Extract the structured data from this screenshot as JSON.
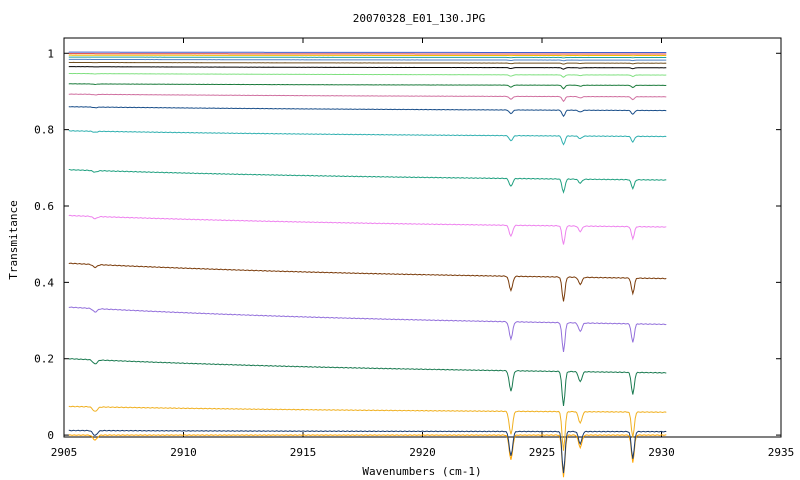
{
  "chart_data": {
    "type": "line",
    "title": "20070328_E01_130.JPG",
    "xlabel": "Wavenumbers (cm-1)",
    "ylabel": "Transmitance",
    "xlim": [
      2905,
      2935
    ],
    "ylim": [
      -0.005,
      1.04
    ],
    "x_ticks": [
      "2905",
      "2910",
      "2915",
      "2920",
      "2925",
      "2930",
      "2935"
    ],
    "y_ticks": [
      "0",
      "0.2",
      "0.4",
      "0.6",
      "0.8",
      "1"
    ],
    "grid": false,
    "legend": "none",
    "x_data_range": [
      2905.2,
      2930.2
    ],
    "absorption_peaks_cm1": [
      2906.3,
      2923.7,
      2925.9,
      2926.6,
      2928.8
    ],
    "series": [
      {
        "values": [
          0.0,
          0.0
        ],
        "color": "#ffa500"
      },
      {
        "values": [
          0.012,
          0.009
        ],
        "color": "#1a3a6b"
      },
      {
        "values": [
          0.075,
          0.06
        ],
        "color": "#f0b020"
      },
      {
        "values": [
          0.2,
          0.163
        ],
        "color": "#1a7a50"
      },
      {
        "values": [
          0.335,
          0.29
        ],
        "color": "#9370db"
      },
      {
        "values": [
          0.45,
          0.41
        ],
        "color": "#7a3b0a"
      },
      {
        "values": [
          0.575,
          0.545
        ],
        "color": "#ee82ee"
      },
      {
        "values": [
          0.695,
          0.668
        ],
        "color": "#20a080"
      },
      {
        "values": [
          0.797,
          0.782
        ],
        "color": "#30b0b0"
      },
      {
        "values": [
          0.86,
          0.85
        ],
        "color": "#1a4f8a"
      },
      {
        "values": [
          0.893,
          0.886
        ],
        "color": "#d070a0"
      },
      {
        "values": [
          0.92,
          0.916
        ],
        "color": "#1a7a3a"
      },
      {
        "values": [
          0.947,
          0.943
        ],
        "color": "#80e080"
      },
      {
        "values": [
          0.965,
          0.962
        ],
        "color": "#000000"
      },
      {
        "values": [
          0.976,
          0.974
        ],
        "color": "#705020"
      },
      {
        "values": [
          0.984,
          0.982
        ],
        "color": "#5080c0"
      },
      {
        "values": [
          0.99,
          0.989
        ],
        "color": "#20a0a0"
      },
      {
        "values": [
          0.995,
          0.994
        ],
        "color": "#f0c000"
      },
      {
        "values": [
          0.999,
          0.998
        ],
        "color": "#e04040"
      },
      {
        "values": [
          1.003,
          1.002
        ],
        "color": "#4060d0"
      }
    ]
  }
}
